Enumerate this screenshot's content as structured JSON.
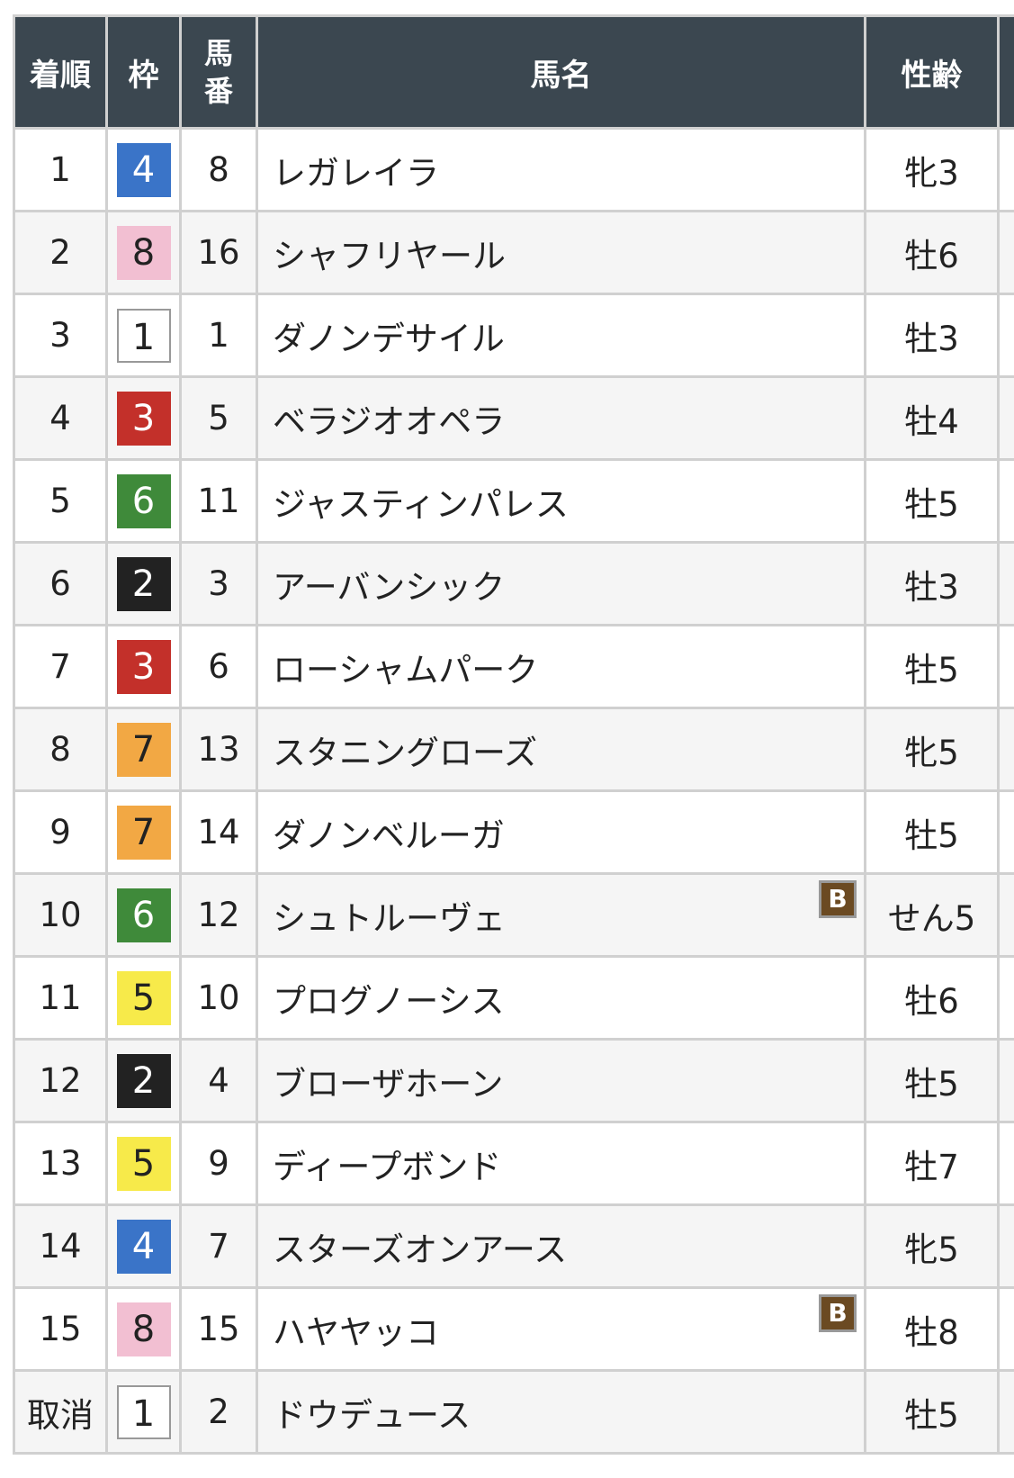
{
  "headers": {
    "rank": "着順",
    "frame": "枠",
    "number": "馬番",
    "name": "馬名",
    "sexage": "性齢"
  },
  "frame_colors": {
    "1": {
      "bg": "#ffffff",
      "fg": "#222222",
      "border": "#999999"
    },
    "2": {
      "bg": "#222222",
      "fg": "#ffffff"
    },
    "3": {
      "bg": "#c3302a",
      "fg": "#ffffff"
    },
    "4": {
      "bg": "#3a74c8",
      "fg": "#ffffff"
    },
    "5": {
      "bg": "#f7ea4a",
      "fg": "#222222"
    },
    "6": {
      "bg": "#3f8a3a",
      "fg": "#ffffff"
    },
    "7": {
      "bg": "#f2a844",
      "fg": "#222222"
    },
    "8": {
      "bg": "#f2bfd2",
      "fg": "#222222"
    }
  },
  "rows": [
    {
      "rank": "1",
      "frame": "4",
      "number": "8",
      "name": "レガレイラ",
      "sexage": "牝3",
      "blinker": ""
    },
    {
      "rank": "2",
      "frame": "8",
      "number": "16",
      "name": "シャフリヤール",
      "sexage": "牡6",
      "blinker": ""
    },
    {
      "rank": "3",
      "frame": "1",
      "number": "1",
      "name": "ダノンデサイル",
      "sexage": "牡3",
      "blinker": ""
    },
    {
      "rank": "4",
      "frame": "3",
      "number": "5",
      "name": "ベラジオオペラ",
      "sexage": "牡4",
      "blinker": ""
    },
    {
      "rank": "5",
      "frame": "6",
      "number": "11",
      "name": "ジャスティンパレス",
      "sexage": "牡5",
      "blinker": ""
    },
    {
      "rank": "6",
      "frame": "2",
      "number": "3",
      "name": "アーバンシック",
      "sexage": "牡3",
      "blinker": ""
    },
    {
      "rank": "7",
      "frame": "3",
      "number": "6",
      "name": "ローシャムパーク",
      "sexage": "牡5",
      "blinker": ""
    },
    {
      "rank": "8",
      "frame": "7",
      "number": "13",
      "name": "スタニングローズ",
      "sexage": "牝5",
      "blinker": ""
    },
    {
      "rank": "9",
      "frame": "7",
      "number": "14",
      "name": "ダノンベルーガ",
      "sexage": "牡5",
      "blinker": ""
    },
    {
      "rank": "10",
      "frame": "6",
      "number": "12",
      "name": "シュトルーヴェ",
      "sexage": "せん5",
      "blinker": "B"
    },
    {
      "rank": "11",
      "frame": "5",
      "number": "10",
      "name": "プログノーシス",
      "sexage": "牡6",
      "blinker": ""
    },
    {
      "rank": "12",
      "frame": "2",
      "number": "4",
      "name": "ブローザホーン",
      "sexage": "牡5",
      "blinker": ""
    },
    {
      "rank": "13",
      "frame": "5",
      "number": "9",
      "name": "ディープボンド",
      "sexage": "牡7",
      "blinker": ""
    },
    {
      "rank": "14",
      "frame": "4",
      "number": "7",
      "name": "スターズオンアース",
      "sexage": "牝5",
      "blinker": ""
    },
    {
      "rank": "15",
      "frame": "8",
      "number": "15",
      "name": "ハヤヤッコ",
      "sexage": "牡8",
      "blinker": "B"
    },
    {
      "rank": "取消",
      "frame": "1",
      "number": "2",
      "name": "ドウデュース",
      "sexage": "牡5",
      "blinker": ""
    }
  ]
}
